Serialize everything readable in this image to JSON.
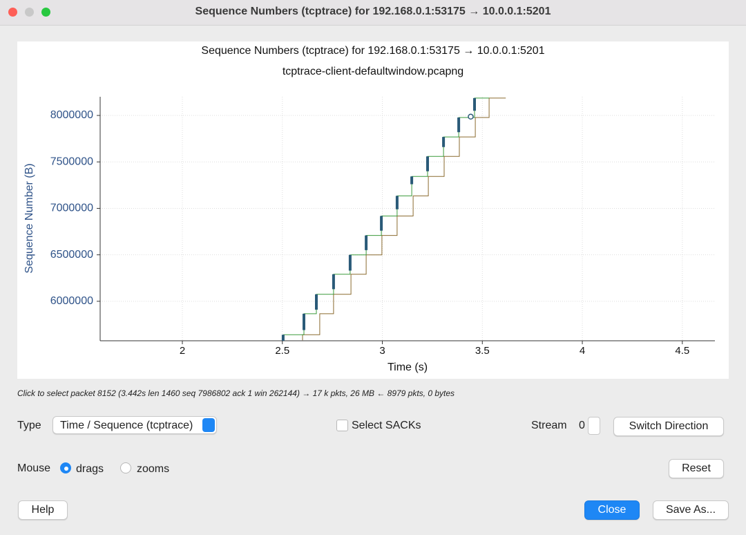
{
  "window": {
    "title": "Sequence Numbers (tcptrace) for 192.168.0.1:53175 → 10.0.0.1:5201"
  },
  "chart_data": {
    "type": "line",
    "title": "Sequence Numbers (tcptrace) for 192.168.0.1:53175 → 10.0.0.1:5201",
    "subtitle": "tcptrace-client-defaultwindow.pcapng",
    "x_label": "Time (s)",
    "y_label": "Sequence Number (B)",
    "xlim": [
      1.589,
      4.663
    ],
    "xticks": [
      2,
      2.5,
      3,
      3.5,
      4,
      4.5
    ],
    "ylim": [
      5575000,
      8201000
    ],
    "yticks": [
      6000000,
      6500000,
      7000000,
      7500000,
      8000000
    ],
    "grid": true,
    "series": [
      {
        "color": "#8a6a2e",
        "line_width": 1,
        "x": [
          2.601,
          2.601,
          2.687,
          2.687,
          2.756,
          2.756,
          2.843,
          2.843,
          2.919,
          2.919,
          2.998,
          2.998,
          3.074,
          3.074,
          3.154,
          3.154,
          3.23,
          3.23,
          3.309,
          3.309,
          3.385,
          3.385,
          3.465,
          3.465,
          3.534,
          3.534,
          3.617
        ],
        "values": [
          5580000,
          5640000,
          5640000,
          5866000,
          5866000,
          6075000,
          6075000,
          6291000,
          6291000,
          6500000,
          6500000,
          6709000,
          6709000,
          6918000,
          6918000,
          7134000,
          7134000,
          7343000,
          7343000,
          7560000,
          7560000,
          7769000,
          7769000,
          7978000,
          7978000,
          8187000,
          8187000
        ]
      },
      {
        "color": "#3a9a3a",
        "line_width": 1,
        "x": [
          2.504,
          2.608,
          2.608,
          2.67,
          2.67,
          2.756,
          2.756,
          2.839,
          2.839,
          2.919,
          2.919,
          2.995,
          2.995,
          3.074,
          3.074,
          3.147,
          3.147,
          3.226,
          3.226,
          3.306,
          3.306,
          3.382,
          3.382,
          3.461,
          3.461,
          3.534
        ],
        "values": [
          5640000,
          5640000,
          5866000,
          5866000,
          6075000,
          6075000,
          6291000,
          6291000,
          6500000,
          6500000,
          6709000,
          6709000,
          6918000,
          6918000,
          7134000,
          7134000,
          7343000,
          7343000,
          7560000,
          7560000,
          7769000,
          7769000,
          7978000,
          7978000,
          8187000,
          8187000
        ]
      },
      {
        "color": "#2a5a78",
        "line_width": 4,
        "x": [
          2.504,
          2.504,
          null,
          2.608,
          2.608,
          null,
          2.67,
          2.67,
          null,
          2.756,
          2.756,
          null,
          2.839,
          2.839,
          null,
          2.919,
          2.919,
          null,
          2.995,
          2.995,
          null,
          3.074,
          3.074,
          null,
          3.147,
          3.147,
          null,
          3.226,
          3.226,
          null,
          3.306,
          3.306,
          null,
          3.382,
          3.382,
          null,
          3.461,
          3.461
        ],
        "values": [
          5575000,
          5640000,
          null,
          5690000,
          5866000,
          null,
          5910000,
          6075000,
          null,
          6130000,
          6291000,
          null,
          6330000,
          6500000,
          null,
          6550000,
          6709000,
          null,
          6760000,
          6918000,
          null,
          6990000,
          7134000,
          null,
          7260000,
          7343000,
          null,
          7400000,
          7560000,
          null,
          7660000,
          7769000,
          null,
          7820000,
          7978000,
          null,
          8050000,
          8187000
        ]
      }
    ],
    "selected": {
      "x": 3.442,
      "y": 7986802
    }
  },
  "status": "Click to select packet 8152 (3.442s len 1460 seq 7986802 ack 1 win 262144) → 17 k pkts, 26 MB ← 8979 pkts, 0 bytes",
  "controls": {
    "type_label": "Type",
    "type_value": "Time / Sequence (tcptrace)",
    "sacks_label": "Select SACKs",
    "stream_label": "Stream",
    "stream_value": "0",
    "switch_direction": "Switch Direction",
    "mouse_label": "Mouse",
    "mouse_drags": "drags",
    "mouse_zooms": "zooms",
    "reset": "Reset",
    "help": "Help",
    "close": "Close",
    "save_as": "Save As..."
  }
}
